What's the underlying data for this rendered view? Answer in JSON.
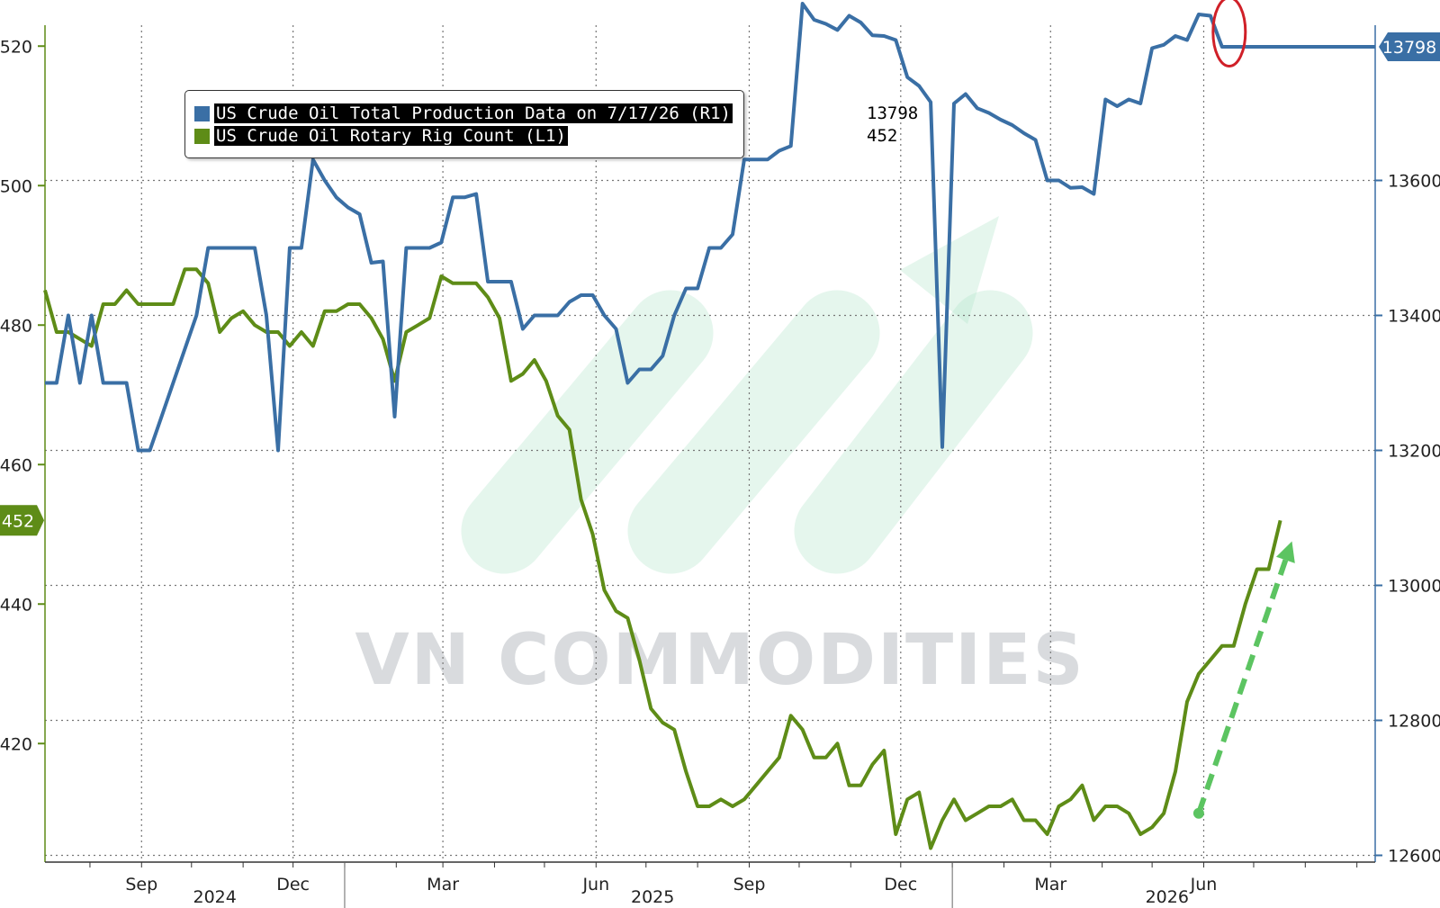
{
  "colors": {
    "production": "#3a6fa5",
    "rig_count": "#5e8c17",
    "arrow": "#5cc461",
    "circle": "#d02028",
    "grid": "#777777",
    "watermark": "#c9cdd1",
    "watermark_logo": "#aee3c8"
  },
  "watermark_text": "VN COMMODITIES",
  "legend": {
    "items": [
      {
        "label": "US Crude Oil Total Production Data on 7/17/26 (R1)",
        "value": "13798",
        "color": "#3a6fa5"
      },
      {
        "label": "US Crude Oil Rotary Rig Count (L1)",
        "value": "452",
        "color": "#5e8c17"
      }
    ]
  },
  "chart_data": {
    "type": "line",
    "title": "",
    "x_axis": {
      "month_ticks": [
        "Sep",
        "Dec",
        "Mar",
        "Jun",
        "Sep",
        "Dec",
        "Mar",
        "Jun"
      ],
      "month_tick_dates": [
        "2024-09",
        "2024-12",
        "2025-03",
        "2025-06",
        "2025-09",
        "2025-12",
        "2026-03",
        "2026-06"
      ],
      "year_labels": [
        "2024",
        "2025",
        "2026"
      ],
      "range": [
        "2024-07-05",
        "2026-09-12"
      ]
    },
    "y_left": {
      "ticks": [
        420,
        440,
        460,
        480,
        500,
        520
      ],
      "range": [
        403,
        523
      ],
      "current_label": "452"
    },
    "y_right": {
      "ticks": [
        12600,
        12800,
        13000,
        13200,
        13400,
        13600
      ],
      "range": [
        12590,
        13830
      ],
      "current_label": "13798"
    },
    "grid": true,
    "legend_position": "top-left",
    "series": [
      {
        "name": "US Crude Oil Total Production Data on 7/17/26 (R1)",
        "axis": "right",
        "points": [
          [
            "2024-07-05",
            13300
          ],
          [
            "2024-07-12",
            13300
          ],
          [
            "2024-07-19",
            13400
          ],
          [
            "2024-07-26",
            13300
          ],
          [
            "2024-08-02",
            13400
          ],
          [
            "2024-08-09",
            13300
          ],
          [
            "2024-08-16",
            13300
          ],
          [
            "2024-08-23",
            13300
          ],
          [
            "2024-08-30",
            13200
          ],
          [
            "2024-09-06",
            13200
          ],
          [
            "2024-09-13",
            13250
          ],
          [
            "2024-09-20",
            13300
          ],
          [
            "2024-10-04",
            13400
          ],
          [
            "2024-10-11",
            13500
          ],
          [
            "2024-10-18",
            13500
          ],
          [
            "2024-10-25",
            13500
          ],
          [
            "2024-11-01",
            13500
          ],
          [
            "2024-11-08",
            13500
          ],
          [
            "2024-11-15",
            13400
          ],
          [
            "2024-11-22",
            13200
          ],
          [
            "2024-11-29",
            13500
          ],
          [
            "2024-12-06",
            13500
          ],
          [
            "2024-12-13",
            13631
          ],
          [
            "2024-12-20",
            13600
          ],
          [
            "2024-12-27",
            13575
          ],
          [
            "2025-01-03",
            13560
          ],
          [
            "2025-01-10",
            13550
          ],
          [
            "2025-01-17",
            13478
          ],
          [
            "2025-01-24",
            13480
          ],
          [
            "2025-01-31",
            13250
          ],
          [
            "2025-02-07",
            13500
          ],
          [
            "2025-02-14",
            13500
          ],
          [
            "2025-02-21",
            13500
          ],
          [
            "2025-02-28",
            13508
          ],
          [
            "2025-03-07",
            13575
          ],
          [
            "2025-03-14",
            13575
          ],
          [
            "2025-03-21",
            13580
          ],
          [
            "2025-03-28",
            13450
          ],
          [
            "2025-04-04",
            13450
          ],
          [
            "2025-04-11",
            13450
          ],
          [
            "2025-04-18",
            13380
          ],
          [
            "2025-04-25",
            13400
          ],
          [
            "2025-05-02",
            13400
          ],
          [
            "2025-05-09",
            13400
          ],
          [
            "2025-05-16",
            13420
          ],
          [
            "2025-05-23",
            13430
          ],
          [
            "2025-05-30",
            13430
          ],
          [
            "2025-06-06",
            13400
          ],
          [
            "2025-06-13",
            13380
          ],
          [
            "2025-06-20",
            13300
          ],
          [
            "2025-06-27",
            13320
          ],
          [
            "2025-07-04",
            13320
          ],
          [
            "2025-07-11",
            13340
          ],
          [
            "2025-07-18",
            13400
          ],
          [
            "2025-07-25",
            13440
          ],
          [
            "2025-08-01",
            13440
          ],
          [
            "2025-08-08",
            13500
          ],
          [
            "2025-08-15",
            13500
          ],
          [
            "2025-08-22",
            13520
          ],
          [
            "2025-08-29",
            13631
          ],
          [
            "2025-09-05",
            13631
          ],
          [
            "2025-09-12",
            13631
          ],
          [
            "2025-09-19",
            13644
          ],
          [
            "2025-09-26",
            13651
          ],
          [
            "2025-10-03",
            13862
          ],
          [
            "2025-10-10",
            13838
          ],
          [
            "2025-10-17",
            13832
          ],
          [
            "2025-10-24",
            13823
          ],
          [
            "2025-10-31",
            13844
          ],
          [
            "2025-11-07",
            13834
          ],
          [
            "2025-11-14",
            13815
          ],
          [
            "2025-11-21",
            13814
          ],
          [
            "2025-11-28",
            13808
          ],
          [
            "2025-12-05",
            13753
          ],
          [
            "2025-12-12",
            13740
          ],
          [
            "2025-12-19",
            13716
          ],
          [
            "2025-12-26",
            13205
          ],
          [
            "2026-01-02",
            13714
          ],
          [
            "2026-01-09",
            13728
          ],
          [
            "2026-01-16",
            13707
          ],
          [
            "2026-01-23",
            13700
          ],
          [
            "2026-01-30",
            13690
          ],
          [
            "2026-02-06",
            13682
          ],
          [
            "2026-02-13",
            13670
          ],
          [
            "2026-02-20",
            13660
          ],
          [
            "2026-02-27",
            13600
          ],
          [
            "2026-03-06",
            13600
          ],
          [
            "2026-03-13",
            13589
          ],
          [
            "2026-03-20",
            13590
          ],
          [
            "2026-03-27",
            13580
          ],
          [
            "2026-04-03",
            13720
          ],
          [
            "2026-04-10",
            13710
          ],
          [
            "2026-04-17",
            13720
          ],
          [
            "2026-04-24",
            13714
          ],
          [
            "2026-05-01",
            13796
          ],
          [
            "2026-05-08",
            13801
          ],
          [
            "2026-05-15",
            13814
          ],
          [
            "2026-05-22",
            13808
          ],
          [
            "2026-05-29",
            13846
          ],
          [
            "2026-06-05",
            13844
          ],
          [
            "2026-06-12",
            13798
          ],
          [
            "2026-09-12",
            13798
          ]
        ]
      },
      {
        "name": "US Crude Oil Rotary Rig Count (L1)",
        "axis": "left",
        "points": [
          [
            "2024-07-05",
            485
          ],
          [
            "2024-07-12",
            479
          ],
          [
            "2024-07-19",
            479
          ],
          [
            "2024-07-26",
            478
          ],
          [
            "2024-08-02",
            477
          ],
          [
            "2024-08-09",
            483
          ],
          [
            "2024-08-16",
            483
          ],
          [
            "2024-08-23",
            485
          ],
          [
            "2024-08-30",
            483
          ],
          [
            "2024-09-06",
            483
          ],
          [
            "2024-09-13",
            483
          ],
          [
            "2024-09-20",
            483
          ],
          [
            "2024-09-27",
            488
          ],
          [
            "2024-10-04",
            488
          ],
          [
            "2024-10-11",
            486
          ],
          [
            "2024-10-18",
            479
          ],
          [
            "2024-10-25",
            481
          ],
          [
            "2024-11-01",
            482
          ],
          [
            "2024-11-08",
            480
          ],
          [
            "2024-11-15",
            479
          ],
          [
            "2024-11-22",
            479
          ],
          [
            "2024-11-29",
            477
          ],
          [
            "2024-12-06",
            479
          ],
          [
            "2024-12-13",
            477
          ],
          [
            "2024-12-20",
            482
          ],
          [
            "2024-12-27",
            482
          ],
          [
            "2025-01-03",
            483
          ],
          [
            "2025-01-10",
            483
          ],
          [
            "2025-01-17",
            481
          ],
          [
            "2025-01-24",
            478
          ],
          [
            "2025-01-31",
            472
          ],
          [
            "2025-02-07",
            479
          ],
          [
            "2025-02-14",
            480
          ],
          [
            "2025-02-21",
            481
          ],
          [
            "2025-02-28",
            487
          ],
          [
            "2025-03-07",
            486
          ],
          [
            "2025-03-14",
            486
          ],
          [
            "2025-03-21",
            486
          ],
          [
            "2025-03-28",
            484
          ],
          [
            "2025-04-04",
            481
          ],
          [
            "2025-04-11",
            472
          ],
          [
            "2025-04-18",
            473
          ],
          [
            "2025-04-25",
            475
          ],
          [
            "2025-05-02",
            472
          ],
          [
            "2025-05-09",
            467
          ],
          [
            "2025-05-16",
            465
          ],
          [
            "2025-05-23",
            455
          ],
          [
            "2025-05-30",
            450
          ],
          [
            "2025-06-06",
            442
          ],
          [
            "2025-06-13",
            439
          ],
          [
            "2025-06-20",
            438
          ],
          [
            "2025-06-27",
            432
          ],
          [
            "2025-07-04",
            425
          ],
          [
            "2025-07-11",
            423
          ],
          [
            "2025-07-18",
            422
          ],
          [
            "2025-07-25",
            416
          ],
          [
            "2025-08-01",
            411
          ],
          [
            "2025-08-08",
            411
          ],
          [
            "2025-08-15",
            412
          ],
          [
            "2025-08-22",
            411
          ],
          [
            "2025-08-29",
            412
          ],
          [
            "2025-09-05",
            414
          ],
          [
            "2025-09-12",
            416
          ],
          [
            "2025-09-19",
            418
          ],
          [
            "2025-09-26",
            424
          ],
          [
            "2025-10-03",
            422
          ],
          [
            "2025-10-10",
            418
          ],
          [
            "2025-10-17",
            418
          ],
          [
            "2025-10-24",
            420
          ],
          [
            "2025-10-31",
            414
          ],
          [
            "2025-11-07",
            414
          ],
          [
            "2025-11-14",
            417
          ],
          [
            "2025-11-21",
            419
          ],
          [
            "2025-11-28",
            407
          ],
          [
            "2025-12-05",
            412
          ],
          [
            "2025-12-12",
            413
          ],
          [
            "2025-12-19",
            405
          ],
          [
            "2025-12-26",
            409
          ],
          [
            "2026-01-02",
            412
          ],
          [
            "2026-01-09",
            409
          ],
          [
            "2026-01-16",
            410
          ],
          [
            "2026-01-23",
            411
          ],
          [
            "2026-01-30",
            411
          ],
          [
            "2026-02-06",
            412
          ],
          [
            "2026-02-13",
            409
          ],
          [
            "2026-02-20",
            409
          ],
          [
            "2026-02-27",
            407
          ],
          [
            "2026-03-06",
            411
          ],
          [
            "2026-03-13",
            412
          ],
          [
            "2026-03-20",
            414
          ],
          [
            "2026-03-27",
            409
          ],
          [
            "2026-04-03",
            411
          ],
          [
            "2026-04-10",
            411
          ],
          [
            "2026-04-17",
            410
          ],
          [
            "2026-04-24",
            407
          ],
          [
            "2026-05-01",
            408
          ],
          [
            "2026-05-08",
            410
          ],
          [
            "2026-05-15",
            416
          ],
          [
            "2026-05-22",
            426
          ],
          [
            "2026-05-29",
            430
          ],
          [
            "2026-06-05",
            432
          ],
          [
            "2026-06-12",
            434
          ],
          [
            "2026-06-19",
            434
          ],
          [
            "2026-06-26",
            440
          ],
          [
            "2026-07-03",
            445
          ],
          [
            "2026-07-10",
            445
          ],
          [
            "2026-07-17",
            452
          ]
        ]
      }
    ],
    "annotations": [
      {
        "type": "circle",
        "date": "2026-06-12",
        "axis": "right",
        "value": 13820
      },
      {
        "type": "dashed-arrow",
        "from": [
          "2026-05-29",
          410
        ],
        "to": [
          "2026-07-24",
          449
        ],
        "axis": "left"
      }
    ]
  }
}
